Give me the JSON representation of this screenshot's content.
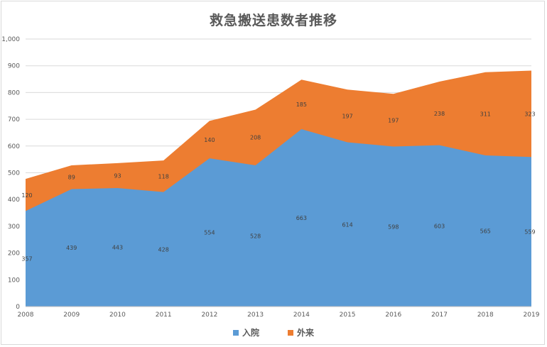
{
  "chart_data": {
    "type": "area",
    "stacked": true,
    "title": "救急搬送患数者推移",
    "x": [
      "2008",
      "2009",
      "2010",
      "2011",
      "2012",
      "2013",
      "2014",
      "2015",
      "2016",
      "2017",
      "2018",
      "2019"
    ],
    "series": [
      {
        "name": "入院",
        "color": "#5b9bd5",
        "values": [
          357,
          439,
          443,
          428,
          554,
          528,
          663,
          614,
          598,
          603,
          565,
          559
        ]
      },
      {
        "name": "外来",
        "color": "#ed7d31",
        "values": [
          120,
          89,
          93,
          118,
          140,
          208,
          185,
          197,
          197,
          238,
          311,
          323
        ]
      }
    ],
    "ylim": [
      0,
      1000
    ],
    "yticks": [
      "0",
      "100",
      "200",
      "300",
      "400",
      "500",
      "600",
      "700",
      "800",
      "900",
      "1,000"
    ],
    "grid": true,
    "legend": "bottom"
  }
}
